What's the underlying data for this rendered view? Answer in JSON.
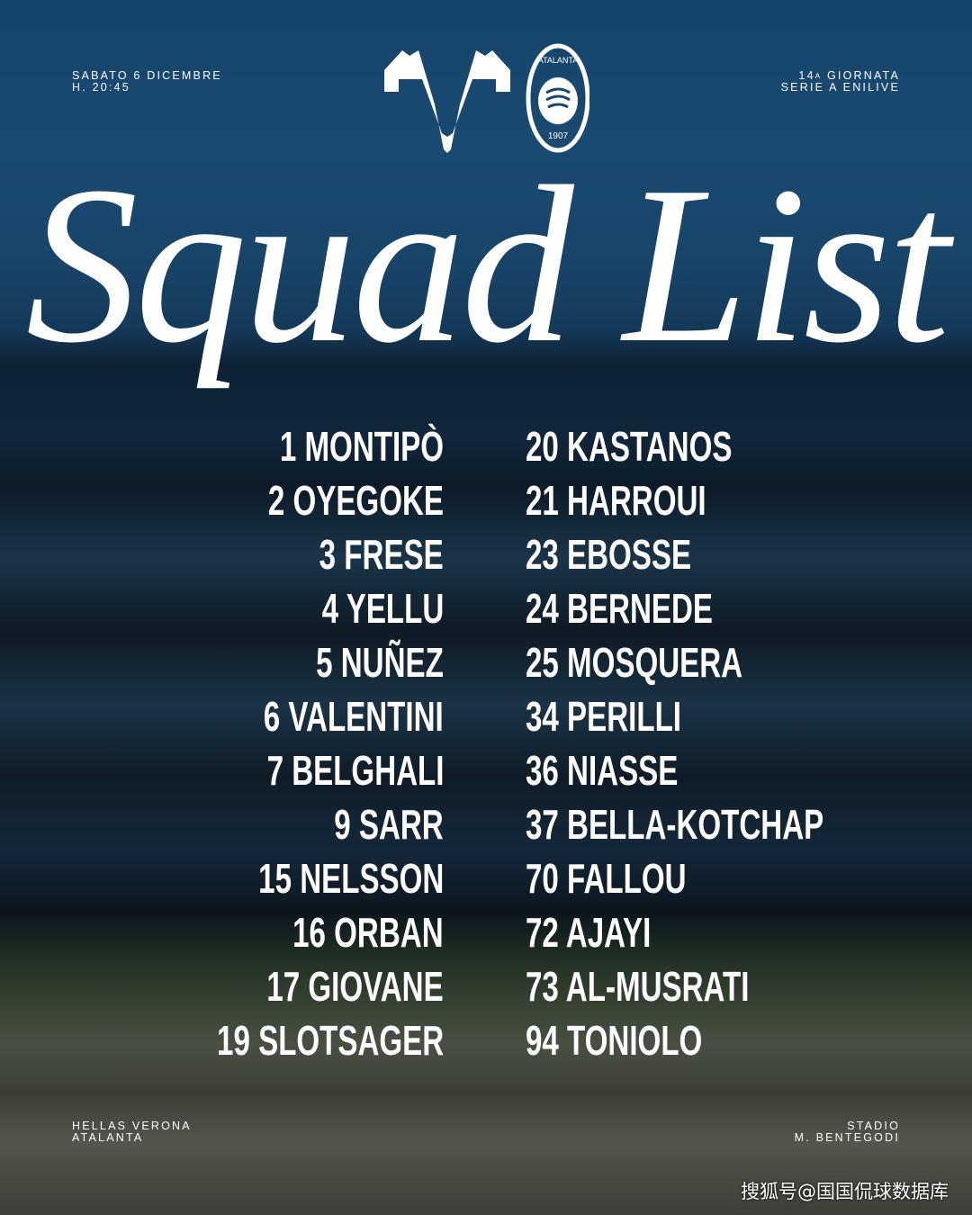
{
  "header": {
    "date": "SABATO 6 DICEMBRE",
    "time": "H. 20:45",
    "matchday_number": "14",
    "matchday_suffix": "A",
    "matchday_label": "GIORNATA",
    "league": "SERIE A ENILIVE"
  },
  "logos": {
    "home": "hellas-verona-crest",
    "away_text": "ATALANTA",
    "away_year": "1907"
  },
  "title": "Squad List",
  "squad_left": [
    "1 MONTIPÒ",
    "2 OYEGOKE",
    "3 FRESE",
    "4 YELLU",
    "5 NUÑEZ",
    "6 VALENTINI",
    "7 BELGHALI",
    "9 SARR",
    "15 NELSSON",
    "16 ORBAN",
    "17 GIOVANE",
    "19 SLOTSAGER"
  ],
  "squad_right": [
    "20 KASTANOS",
    "21 HARROUI",
    "23 EBOSSE",
    "24 BERNEDE",
    "25 MOSQUERA",
    "34 PERILLI",
    "36 NIASSE",
    "37 BELLA-KOTCHAP",
    "70 FALLOU",
    "72 AJAYI",
    "73 AL-MUSRATI",
    "94 TONIOLO"
  ],
  "footer": {
    "home": "HELLAS VERONA",
    "away": "ATALANTA",
    "stadium_line1": "STADIO",
    "stadium_line2": "M. BENTEGODI"
  },
  "watermark": "搜狐号@国国侃球数据库"
}
